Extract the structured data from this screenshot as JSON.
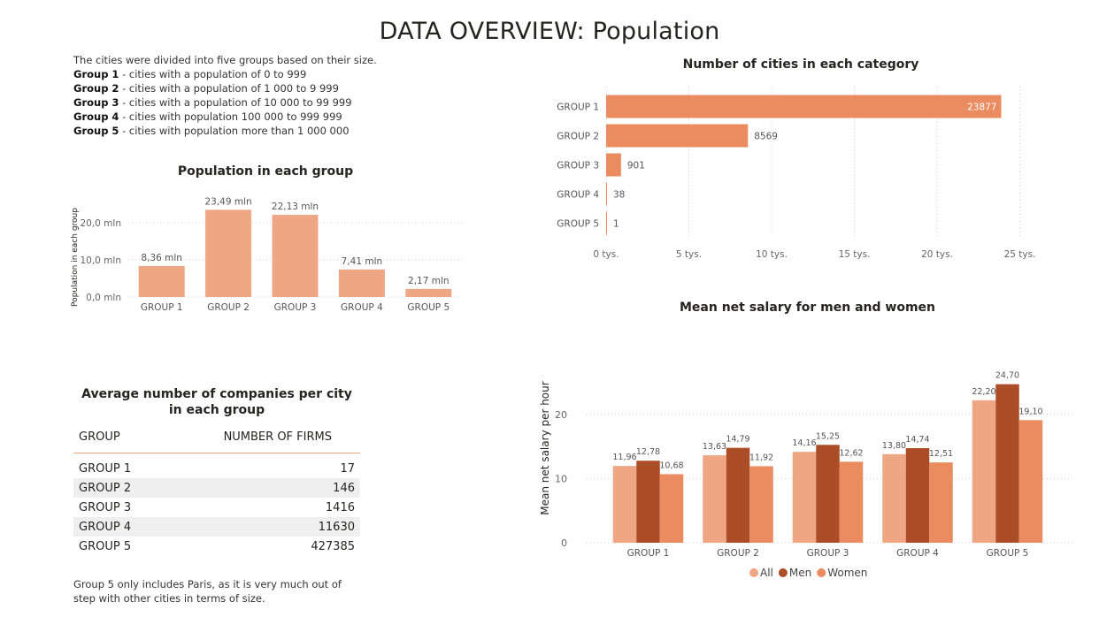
{
  "page": {
    "title": "DATA OVERVIEW: Population",
    "intro_line": "The cities were divided into five groups based on their size.",
    "groups": [
      {
        "name": "Group 1",
        "desc": " - cities with a population of 0 to 999"
      },
      {
        "name": "Group 2",
        "desc": " - cities with a population of 1 000 to 9 999"
      },
      {
        "name": "Group 3",
        "desc": " - cities with a population of 10 000 to 99 999"
      },
      {
        "name": "Group 4",
        "desc": " - cities with population 100 000 to 999 999"
      },
      {
        "name": "Group 5",
        "desc": " - cities with population more than 1 000 000"
      }
    ],
    "note": "Group 5 only includes Paris, as it is very much out of step with other cities in terms of size."
  },
  "chart_data": [
    {
      "type": "bar",
      "title": "Population in each group",
      "ylabel": "Population in each group",
      "categories": [
        "GROUP 1",
        "GROUP 2",
        "GROUP 3",
        "GROUP 4",
        "GROUP 5"
      ],
      "values": [
        8.36,
        23.49,
        22.13,
        7.41,
        2.17
      ],
      "labels": [
        "8,36 mln",
        "23,49 mln",
        "22,13 mln",
        "7,41 mln",
        "2,17 mln"
      ],
      "yticks": [
        "0,0 mln",
        "10,0 mln",
        "20,0 mln"
      ],
      "ytick_values": [
        0,
        10,
        20
      ],
      "ylim": [
        0,
        25
      ],
      "color": "#EEA684",
      "grid": true
    },
    {
      "type": "bar",
      "orientation": "horizontal",
      "title": "Number of cities in each category",
      "categories": [
        "GROUP 1",
        "GROUP 2",
        "GROUP 3",
        "GROUP 4",
        "GROUP 5"
      ],
      "values": [
        23877,
        8569,
        901,
        38,
        1
      ],
      "labels": [
        "23877",
        "8569",
        "901",
        "38",
        "1"
      ],
      "xticks": [
        "0 tys.",
        "5 tys.",
        "10 tys.",
        "15 tys.",
        "20 tys.",
        "25 tys."
      ],
      "xtick_values": [
        0,
        5000,
        10000,
        15000,
        20000,
        25000
      ],
      "xlim": [
        0,
        25000
      ],
      "color": "#EB8B60",
      "grid": true
    },
    {
      "type": "bar",
      "title": "Mean net salary for men and women",
      "ylabel": "Mean net salary per hour",
      "categories": [
        "GROUP 1",
        "GROUP 2",
        "GROUP 3",
        "GROUP 4",
        "GROUP 5"
      ],
      "series": [
        {
          "name": "All",
          "values": [
            11.96,
            13.63,
            14.16,
            13.8,
            22.2
          ],
          "labels": [
            "11,96",
            "13,63",
            "14,16",
            "13,80",
            "22,20"
          ],
          "color": "#EEA684"
        },
        {
          "name": "Men",
          "values": [
            12.78,
            14.79,
            15.25,
            14.74,
            24.7
          ],
          "labels": [
            "12,78",
            "14,79",
            "15,25",
            "14,74",
            "24,70"
          ],
          "color": "#AB4D26"
        },
        {
          "name": "Women",
          "values": [
            10.68,
            11.92,
            12.62,
            12.51,
            19.1
          ],
          "labels": [
            "10,68",
            "11,92",
            "12,62",
            "12,51",
            "19,10"
          ],
          "color": "#EB8B60"
        }
      ],
      "yticks": [
        "0",
        "10",
        "20"
      ],
      "ytick_values": [
        0,
        10,
        20
      ],
      "ylim": [
        0,
        25
      ],
      "legend": "bottom-center",
      "grid": true
    },
    {
      "type": "table",
      "title": "Average number of companies per city in each group",
      "columns": [
        "GROUP",
        "NUMBER OF FIRMS"
      ],
      "rows": [
        [
          "GROUP 1",
          "17"
        ],
        [
          "GROUP 2",
          "146"
        ],
        [
          "GROUP 3",
          "1416"
        ],
        [
          "GROUP 4",
          "11630"
        ],
        [
          "GROUP 5",
          "427385"
        ]
      ]
    }
  ]
}
